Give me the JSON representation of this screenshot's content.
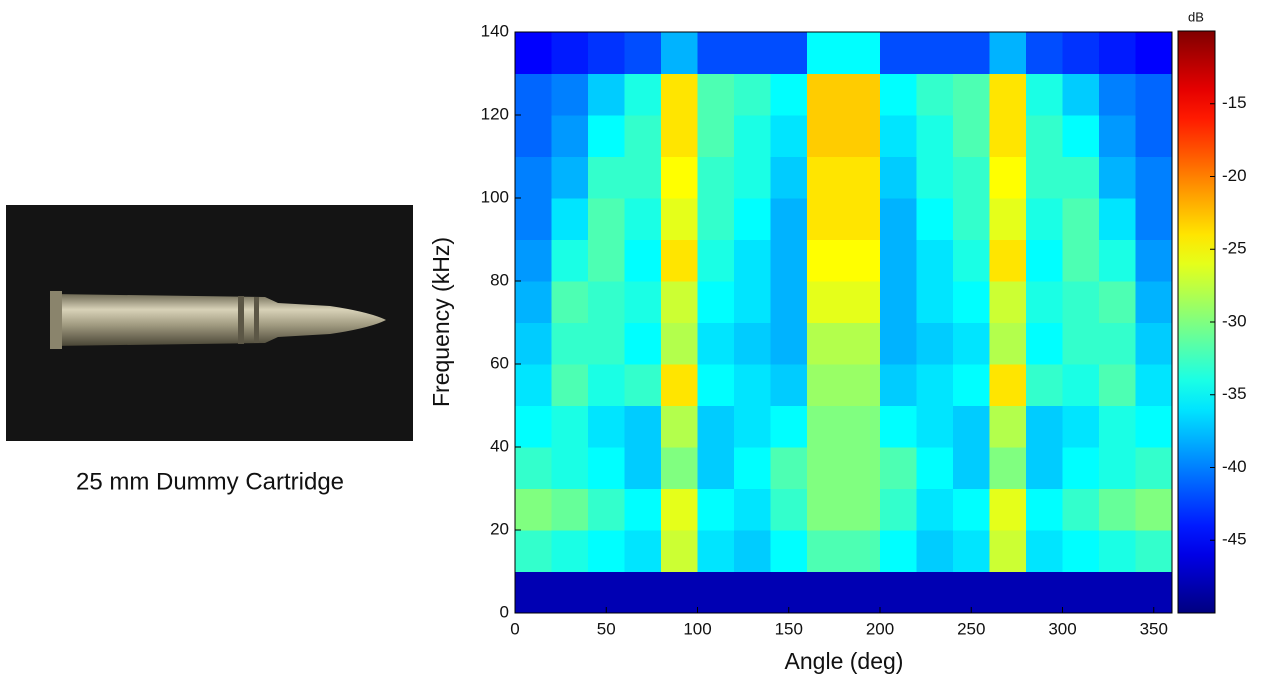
{
  "caption": "25 mm Dummy Cartridge",
  "chart_data": {
    "type": "heatmap",
    "xlabel": "Angle (deg)",
    "ylabel": "Frequency (kHz)",
    "xlim": [
      0,
      360
    ],
    "ylim": [
      0,
      140
    ],
    "xticks": [
      0,
      50,
      100,
      150,
      200,
      250,
      300,
      350
    ],
    "yticks": [
      0,
      20,
      40,
      60,
      80,
      100,
      120,
      140
    ],
    "colorbar_label": "dB",
    "clim": [
      -50,
      -10
    ],
    "cticks": [
      -45,
      -40,
      -35,
      -30,
      -25,
      -20,
      -15
    ],
    "x": [
      10,
      30,
      50,
      70,
      90,
      110,
      130,
      150,
      170,
      190,
      210,
      230,
      250,
      270,
      290,
      310,
      330,
      350
    ],
    "y": [
      5,
      15,
      25,
      35,
      45,
      55,
      65,
      75,
      85,
      95,
      105,
      115,
      125,
      135
    ],
    "values": [
      [
        -48,
        -48,
        -48,
        -48,
        -48,
        -48,
        -48,
        -48,
        -48,
        -48,
        -48,
        -48,
        -48,
        -48,
        -48,
        -48,
        -48,
        -48
      ],
      [
        -33,
        -34,
        -35,
        -36,
        -27,
        -36,
        -37,
        -35,
        -32,
        -32,
        -35,
        -37,
        -36,
        -27,
        -36,
        -35,
        -34,
        -33
      ],
      [
        -30,
        -31,
        -33,
        -35,
        -26,
        -35,
        -36,
        -33,
        -30,
        -30,
        -33,
        -36,
        -35,
        -26,
        -35,
        -33,
        -31,
        -30
      ],
      [
        -33,
        -34,
        -35,
        -37,
        -30,
        -37,
        -35,
        -32,
        -30,
        -30,
        -32,
        -35,
        -37,
        -30,
        -37,
        -35,
        -34,
        -33
      ],
      [
        -35,
        -34,
        -36,
        -37,
        -28,
        -37,
        -36,
        -35,
        -30,
        -30,
        -35,
        -36,
        -37,
        -28,
        -37,
        -36,
        -34,
        -35
      ],
      [
        -36,
        -32,
        -34,
        -33,
        -24,
        -35,
        -36,
        -37,
        -29,
        -29,
        -37,
        -36,
        -35,
        -24,
        -33,
        -34,
        -32,
        -36
      ],
      [
        -37,
        -33,
        -33,
        -35,
        -28,
        -36,
        -37,
        -38,
        -28,
        -28,
        -38,
        -37,
        -36,
        -28,
        -35,
        -33,
        -33,
        -37
      ],
      [
        -38,
        -32,
        -33,
        -34,
        -27,
        -35,
        -36,
        -38,
        -26,
        -26,
        -38,
        -36,
        -35,
        -27,
        -34,
        -33,
        -32,
        -38
      ],
      [
        -39,
        -34,
        -32,
        -35,
        -24,
        -34,
        -36,
        -38,
        -25,
        -25,
        -38,
        -36,
        -34,
        -24,
        -35,
        -32,
        -34,
        -39
      ],
      [
        -40,
        -36,
        -32,
        -34,
        -26,
        -33,
        -35,
        -38,
        -24,
        -24,
        -38,
        -35,
        -33,
        -26,
        -34,
        -32,
        -36,
        -40
      ],
      [
        -40,
        -38,
        -33,
        -33,
        -25,
        -33,
        -34,
        -37,
        -24,
        -24,
        -37,
        -34,
        -33,
        -25,
        -33,
        -33,
        -38,
        -40
      ],
      [
        -41,
        -39,
        -35,
        -33,
        -24,
        -32,
        -34,
        -36,
        -23,
        -23,
        -36,
        -34,
        -32,
        -24,
        -33,
        -35,
        -39,
        -41
      ],
      [
        -41,
        -40,
        -37,
        -34,
        -24,
        -32,
        -33,
        -35,
        -23,
        -23,
        -35,
        -33,
        -32,
        -24,
        -34,
        -37,
        -40,
        -41
      ],
      [
        -45,
        -44,
        -43,
        -42,
        -38,
        -42,
        -42,
        -42,
        -35,
        -35,
        -42,
        -42,
        -42,
        -38,
        -42,
        -43,
        -44,
        -45
      ]
    ]
  }
}
